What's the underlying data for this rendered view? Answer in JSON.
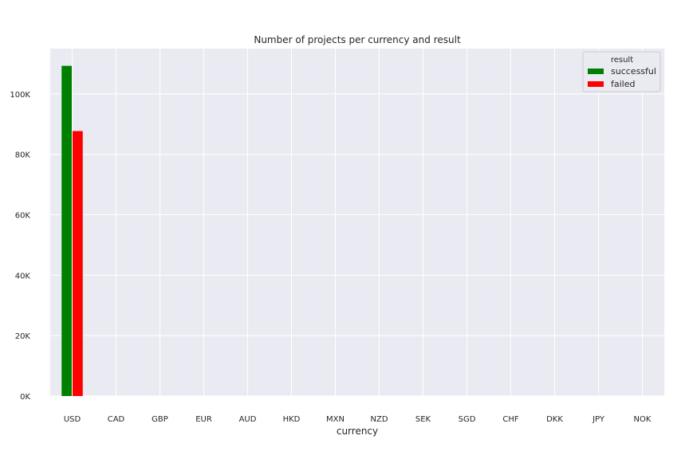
{
  "chart_data": {
    "type": "bar",
    "title": "Number of projects per currency and result",
    "xlabel": "currency",
    "ylabel": "",
    "categories": [
      "USD",
      "CAD",
      "GBP",
      "EUR",
      "AUD",
      "HKD",
      "MXN",
      "NZD",
      "SEK",
      "SGD",
      "CHF",
      "DKK",
      "JPY",
      "NOK"
    ],
    "series": [
      {
        "name": "successful",
        "color": "#008000",
        "values": [
          109300,
          0,
          0,
          0,
          0,
          0,
          0,
          0,
          0,
          0,
          0,
          0,
          0,
          0
        ]
      },
      {
        "name": "failed",
        "color": "#ff0000",
        "values": [
          87700,
          0,
          0,
          0,
          0,
          0,
          0,
          0,
          0,
          0,
          0,
          0,
          0,
          0
        ]
      }
    ],
    "ylim": [
      0,
      115000
    ],
    "yticks": [
      0,
      20000,
      40000,
      60000,
      80000,
      100000
    ],
    "ytick_labels": [
      "0K",
      "20K",
      "40K",
      "60K",
      "80K",
      "100K"
    ],
    "legend": {
      "title": "result",
      "placement": "top-right"
    },
    "grid": true,
    "background": "#eaeaf2"
  }
}
